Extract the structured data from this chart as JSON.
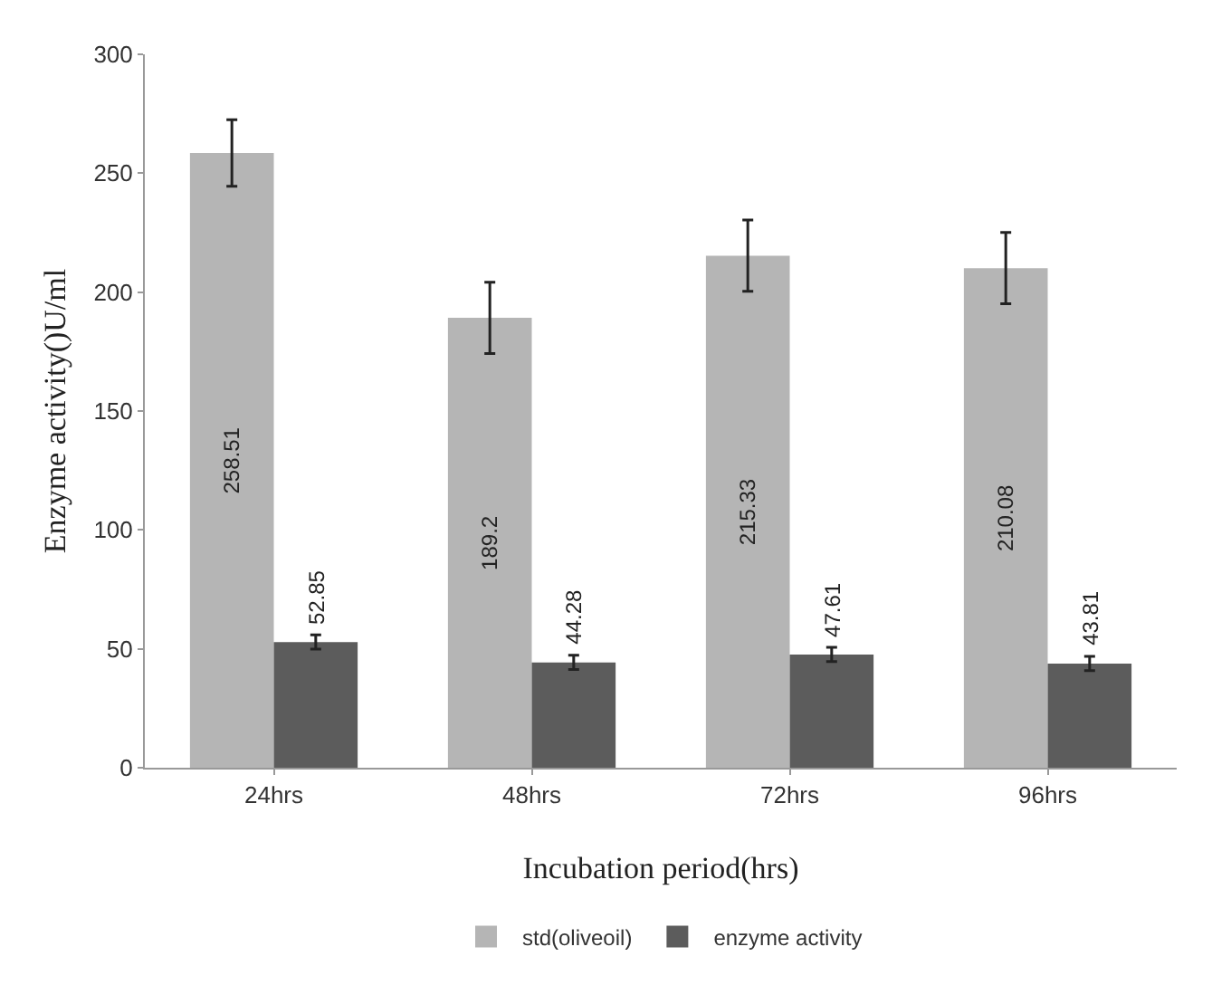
{
  "chart_data": {
    "type": "bar",
    "xlabel": "Incubation period(hrs)",
    "ylabel": "Enzyme activity()U/ml",
    "categories": [
      "24hrs",
      "48hrs",
      "72hrs",
      "96hrs"
    ],
    "series": [
      {
        "name": "std(oliveoil)",
        "color": "#b5b5b5",
        "values": [
          258.51,
          189.2,
          215.33,
          210.08
        ],
        "errors": [
          14,
          15,
          15,
          15
        ]
      },
      {
        "name": "enzyme activity",
        "color": "#5c5c5c",
        "values": [
          52.85,
          44.28,
          47.61,
          43.81
        ],
        "errors": [
          3,
          3,
          3,
          3
        ]
      }
    ],
    "ylim": [
      0,
      300
    ],
    "yticks": [
      0,
      50,
      100,
      150,
      200,
      250,
      300
    ],
    "data_labels": true,
    "legend": "bottom"
  }
}
